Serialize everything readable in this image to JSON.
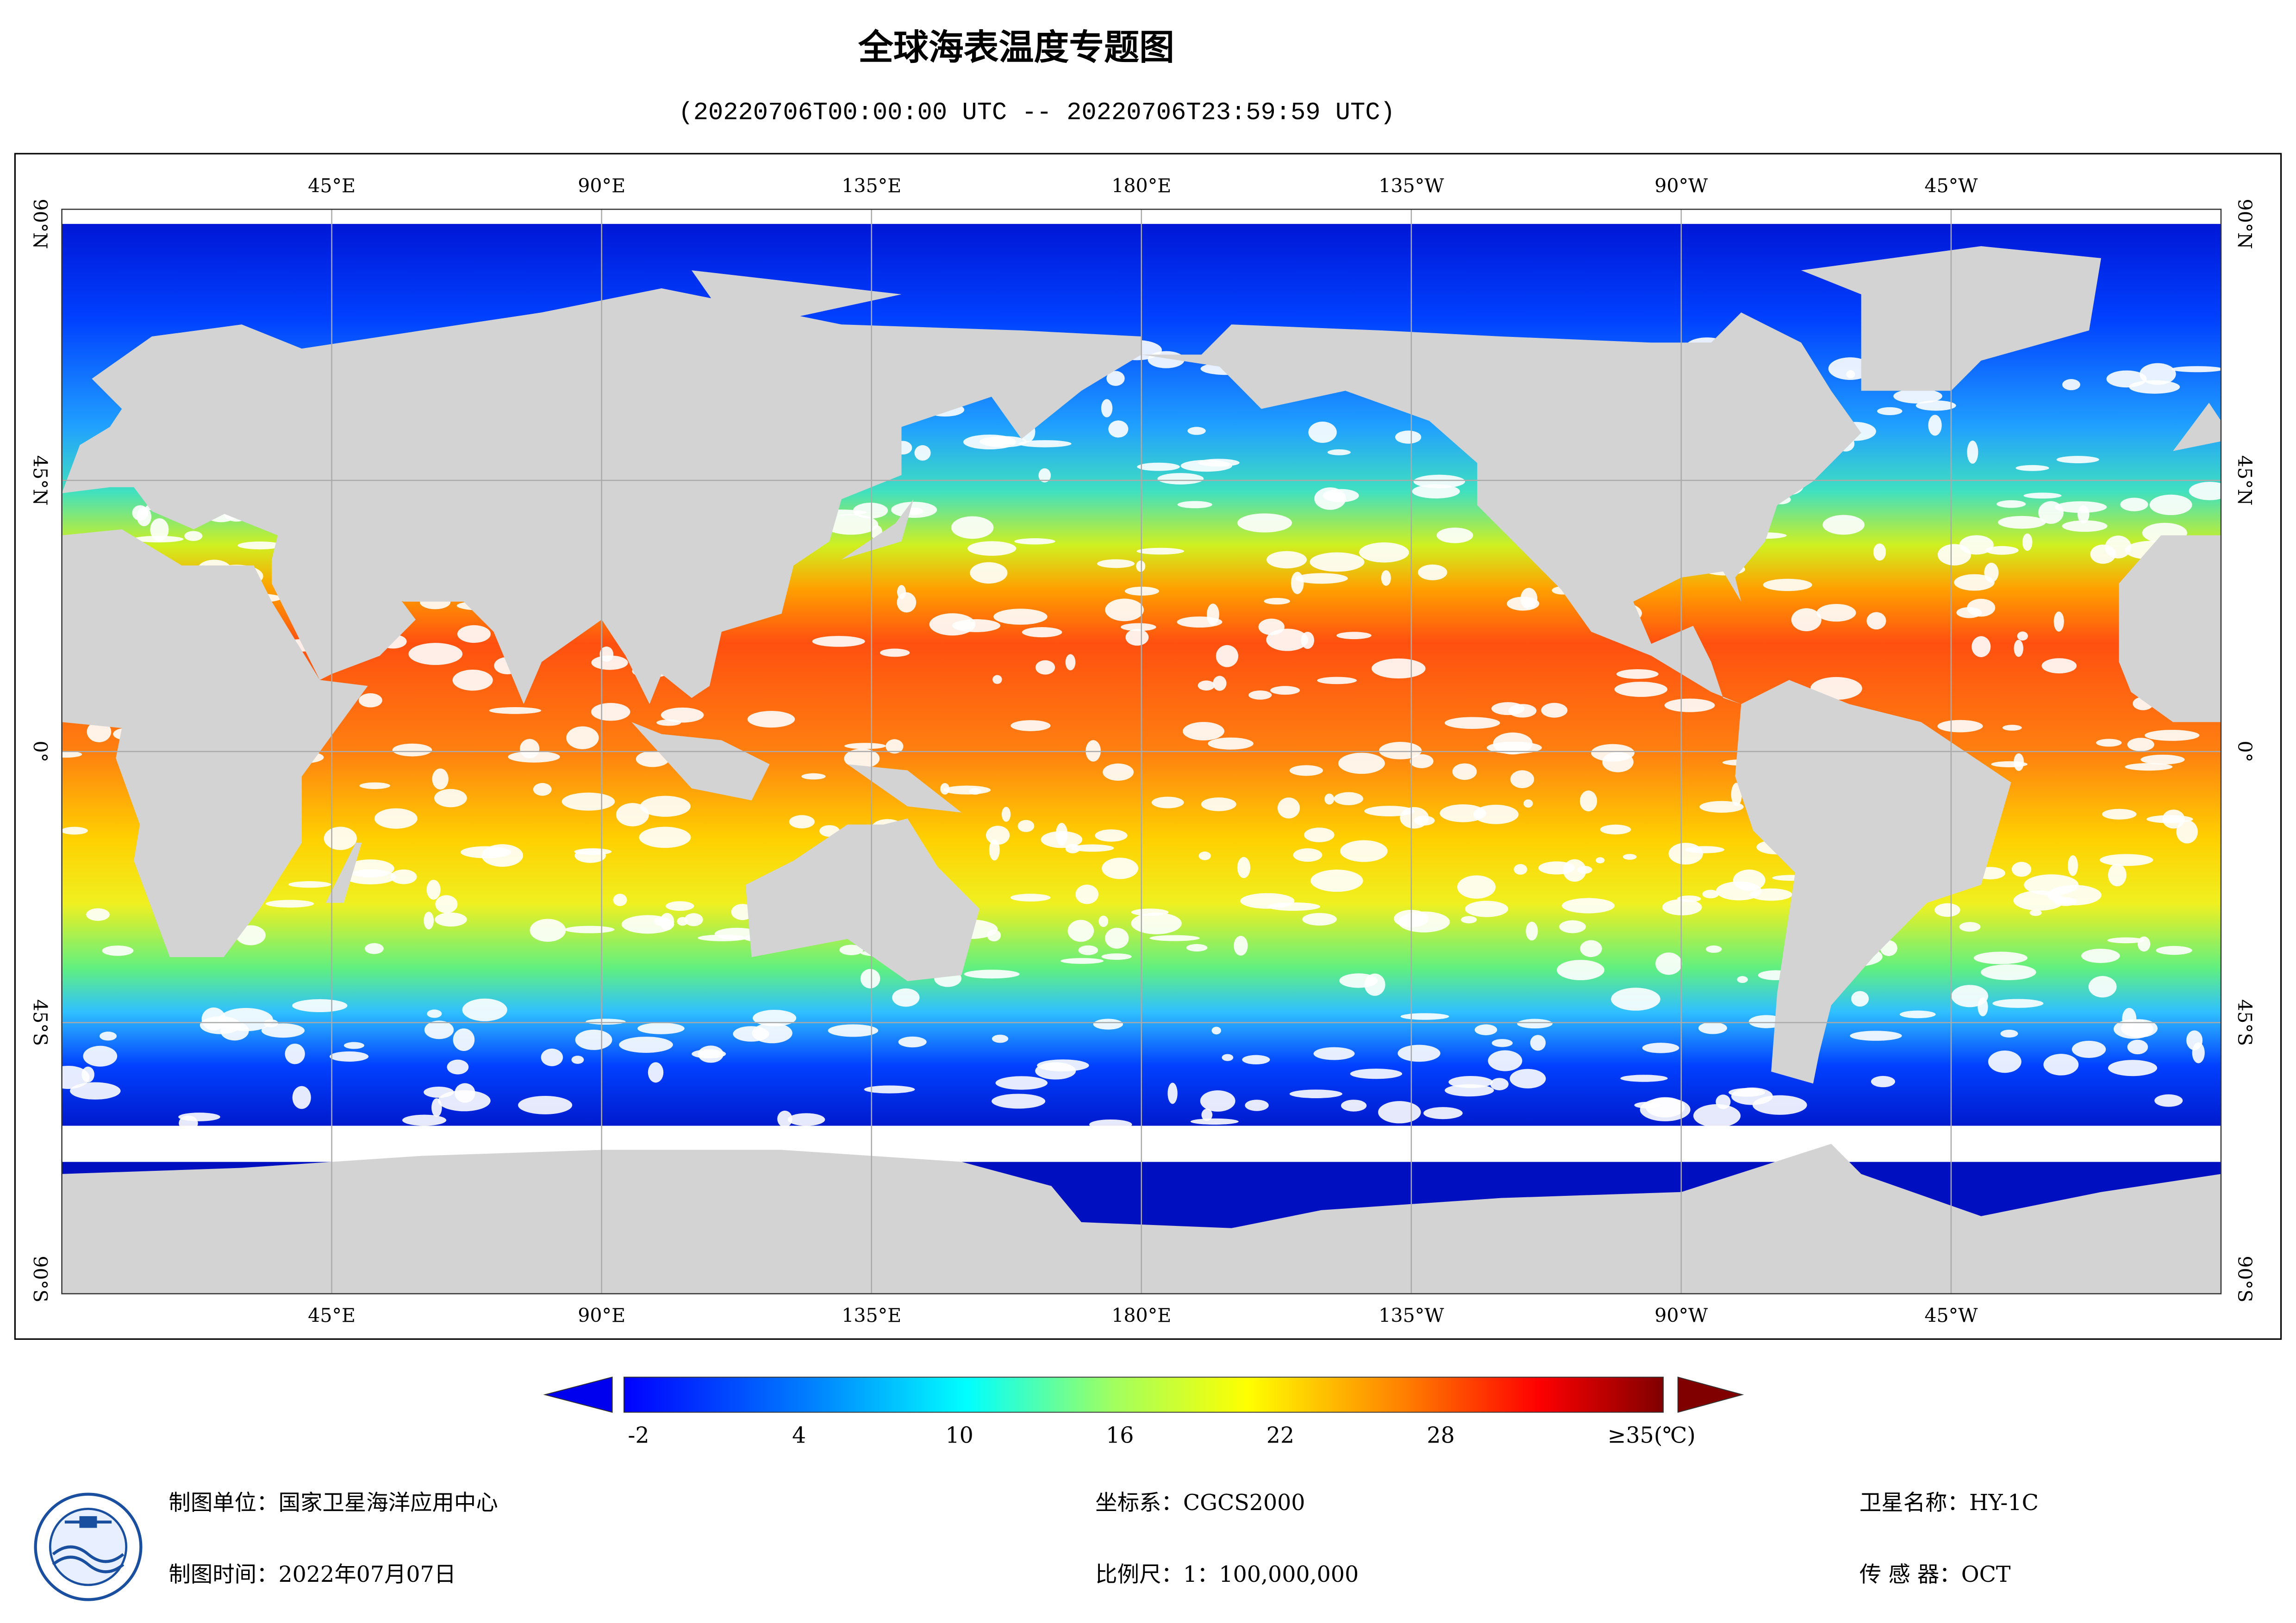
{
  "header": {
    "title": "全球海表温度专题图",
    "subtitle": "(20220706T00:00:00 UTC -- 20220706T23:59:59 UTC)"
  },
  "map": {
    "lon_labels": [
      "45°E",
      "90°E",
      "135°E",
      "180°E",
      "135°W",
      "90°W",
      "45°W"
    ],
    "lat_labels": [
      "90°N",
      "45°N",
      "0°",
      "45°S",
      "90°S"
    ]
  },
  "colorbar": {
    "ticks": [
      -2,
      4,
      10,
      16,
      22,
      28
    ],
    "max_label": "≥35(℃)"
  },
  "footer": {
    "agency": "制图单位：国家卫星海洋应用中心",
    "date": "制图时间：2022年07月07日",
    "crs": "坐标系：CGCS2000",
    "scale": "比例尺：1：100,000,000",
    "satellite": "卫星名称：HY-1C",
    "sensor": "传 感 器：OCT"
  }
}
